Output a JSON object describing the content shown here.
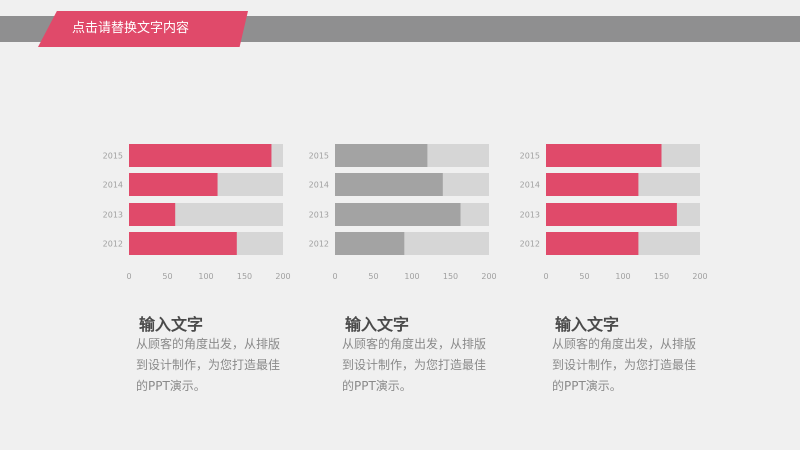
{
  "header": {
    "title": "点击请替换文字内容"
  },
  "colors": {
    "accent": "#e04a6a",
    "gray_dark": "#a3a3a3",
    "track": "#d6d6d6",
    "header_bar": "#8f8f90"
  },
  "chart_data": [
    {
      "type": "bar",
      "orientation": "horizontal",
      "categories": [
        "2015",
        "2014",
        "2013",
        "2012"
      ],
      "values": [
        185,
        115,
        60,
        140
      ],
      "xlim": [
        0,
        200
      ],
      "xticks": [
        "0",
        "50",
        "100",
        "150",
        "200"
      ],
      "bar_color": "#e04a6a",
      "grid": false
    },
    {
      "type": "bar",
      "orientation": "horizontal",
      "categories": [
        "2015",
        "2014",
        "2013",
        "2012"
      ],
      "values": [
        120,
        140,
        163,
        90
      ],
      "xlim": [
        0,
        200
      ],
      "xticks": [
        "0",
        "50",
        "100",
        "150",
        "200"
      ],
      "bar_color": "#a3a3a3",
      "grid": false
    },
    {
      "type": "bar",
      "orientation": "horizontal",
      "categories": [
        "2015",
        "2014",
        "2013",
        "2012"
      ],
      "values": [
        150,
        120,
        170,
        120
      ],
      "xlim": [
        0,
        200
      ],
      "xticks": [
        "0",
        "50",
        "100",
        "150",
        "200"
      ],
      "bar_color": "#e04a6a",
      "grid": false
    }
  ],
  "blocks": [
    {
      "title": "输入文字",
      "body": "从顾客的角度出发，从排版到设计制作，为您打造最佳的PPT演示。"
    },
    {
      "title": "输入文字",
      "body": "从顾客的角度出发，从排版到设计制作，为您打造最佳的PPT演示。"
    },
    {
      "title": "输入文字",
      "body": "从顾客的角度出发，从排版到设计制作，为您打造最佳的PPT演示。"
    }
  ]
}
